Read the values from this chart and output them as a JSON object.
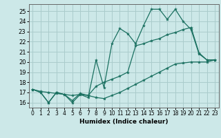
{
  "xlabel": "Humidex (Indice chaleur)",
  "background_color": "#cce8e8",
  "grid_color": "#aacccc",
  "line_color": "#1a7060",
  "xlim": [
    -0.5,
    23.5
  ],
  "ylim": [
    15.5,
    25.7
  ],
  "xticks": [
    0,
    1,
    2,
    3,
    4,
    5,
    6,
    7,
    8,
    9,
    10,
    11,
    12,
    13,
    14,
    15,
    16,
    17,
    18,
    19,
    20,
    21,
    22,
    23
  ],
  "yticks": [
    16,
    17,
    18,
    19,
    20,
    21,
    22,
    23,
    24,
    25
  ],
  "series": [
    [
      17.3,
      17.0,
      16.0,
      17.0,
      16.8,
      16.0,
      16.8,
      16.5,
      20.2,
      17.5,
      21.8,
      23.3,
      22.8,
      21.8,
      23.6,
      25.2,
      25.2,
      24.2,
      25.2,
      24.0,
      23.2,
      20.8,
      20.2,
      20.2
    ],
    [
      17.3,
      17.0,
      16.0,
      17.0,
      16.8,
      16.2,
      16.9,
      16.7,
      17.6,
      18.0,
      18.3,
      18.6,
      19.0,
      21.6,
      21.8,
      22.1,
      22.3,
      22.7,
      22.9,
      23.2,
      23.4,
      20.9,
      20.2,
      20.2
    ],
    [
      17.3,
      17.1,
      17.0,
      16.9,
      16.8,
      16.7,
      16.8,
      16.7,
      16.5,
      16.4,
      16.7,
      17.0,
      17.4,
      17.8,
      18.2,
      18.6,
      19.0,
      19.4,
      19.8,
      19.9,
      20.0,
      20.0,
      20.0,
      20.2
    ]
  ]
}
